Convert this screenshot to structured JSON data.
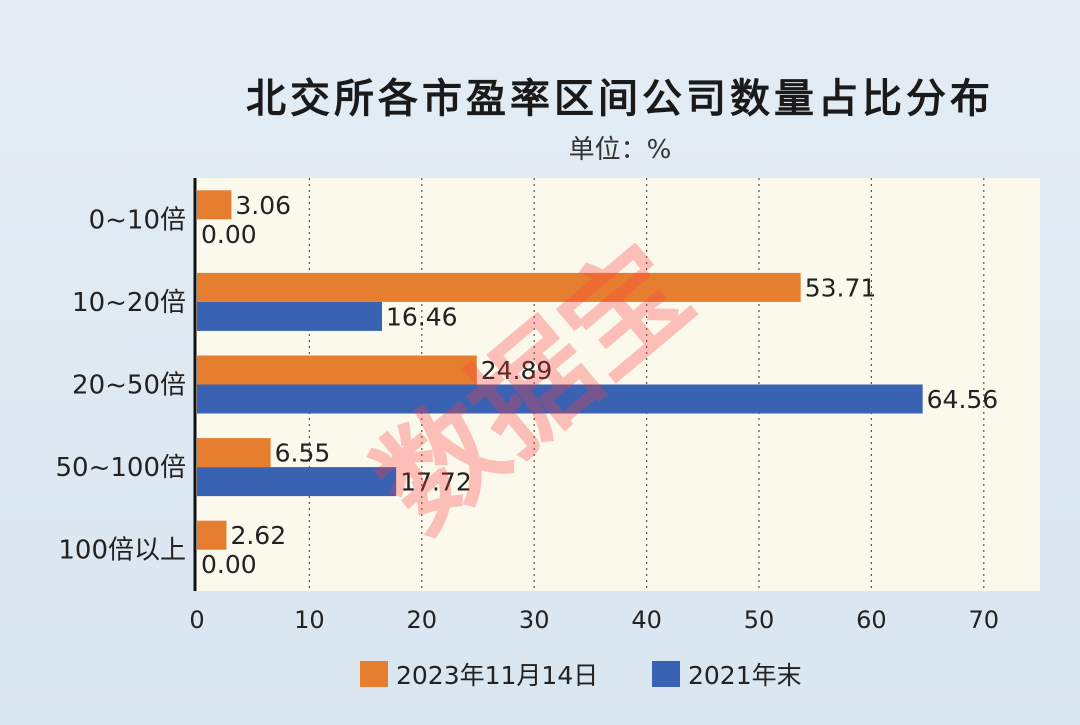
{
  "chart_data": {
    "type": "bar",
    "orientation": "horizontal",
    "title": "北交所各市盈率区间公司数量占比分布",
    "unit": "单位：%",
    "categories": [
      "0~10倍",
      "10~20倍",
      "20~50倍",
      "50~100倍",
      "100倍以上"
    ],
    "series": [
      {
        "name": "2023年11月14日",
        "color": "#e67e30",
        "values": [
          3.06,
          53.71,
          24.89,
          6.55,
          2.62
        ],
        "labels": [
          "3.06",
          "53.71",
          "24.89",
          "6.55",
          "2.62"
        ]
      },
      {
        "name": "2021年末",
        "color": "#3a62b3",
        "values": [
          0.0,
          16.46,
          64.56,
          17.72,
          0.0
        ],
        "labels": [
          "0.00",
          "16.46",
          "64.56",
          "17.72",
          "0.00"
        ]
      }
    ],
    "xlim": [
      0,
      75
    ],
    "xticks": [
      0,
      10,
      20,
      30,
      40,
      50,
      60,
      70
    ],
    "grid": true,
    "legend": "bottom"
  },
  "watermark": "数据宝"
}
